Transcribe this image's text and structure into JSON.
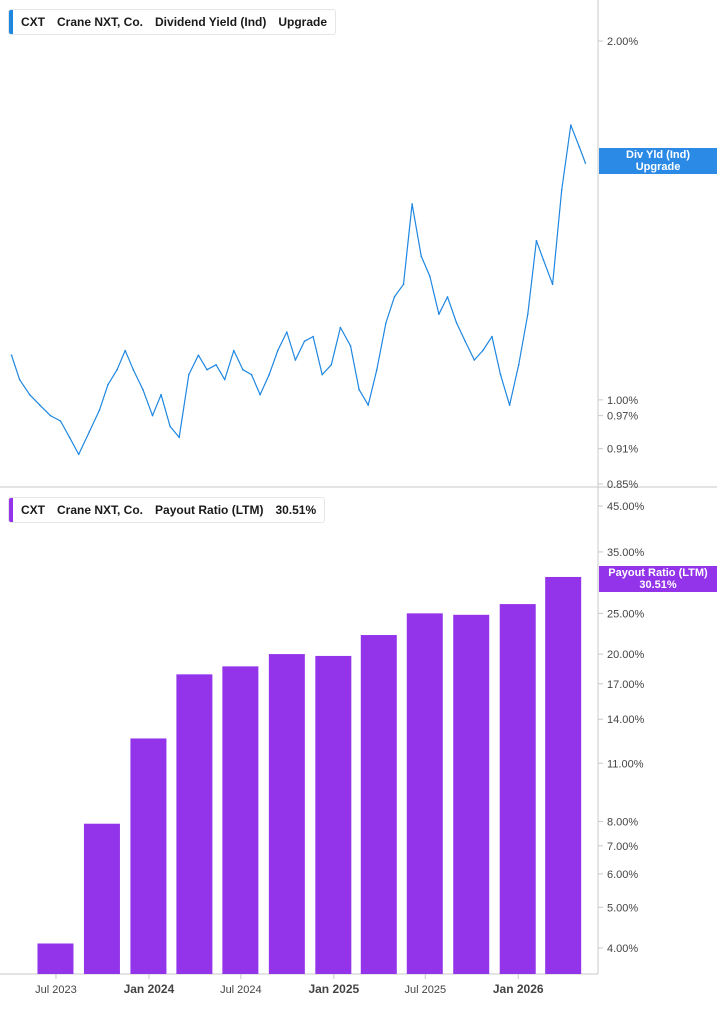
{
  "colors": {
    "yield_line": "#1f87e0",
    "payout_bar": "#9333ea",
    "axis": "#c8c8c8",
    "tick_text": "#444444"
  },
  "top_panel": {
    "legend": {
      "ticker": "CXT",
      "company": "Crane NXT, Co.",
      "metric": "Dividend Yield (Ind)",
      "value": "Upgrade"
    },
    "badge": {
      "line1": "Div Yld (Ind)",
      "line2": "Upgrade"
    }
  },
  "bottom_panel": {
    "legend": {
      "ticker": "CXT",
      "company": "Crane NXT, Co.",
      "metric": "Payout Ratio (LTM)",
      "value": "30.51%"
    },
    "badge": {
      "line1": "Payout Ratio (LTM)",
      "line2": "30.51%"
    }
  },
  "chart_data": [
    {
      "type": "line",
      "name": "Dividend Yield (Ind)",
      "y_scale": "log",
      "ylim": [
        0.85,
        2.15
      ],
      "y_ticks": [
        "2.00%",
        "1.00%",
        "0.97%",
        "0.91%",
        "0.85%"
      ],
      "y_tick_values": [
        2.0,
        1.0,
        0.97,
        0.91,
        0.85
      ],
      "x": [
        "2023-04-04",
        "2023-04-20",
        "2023-05-10",
        "2023-05-30",
        "2023-06-20",
        "2023-07-10",
        "2023-07-28",
        "2023-08-15",
        "2023-09-05",
        "2023-09-25",
        "2023-10-12",
        "2023-10-30",
        "2023-11-15",
        "2023-12-01",
        "2023-12-20",
        "2024-01-08",
        "2024-01-25",
        "2024-02-12",
        "2024-03-01",
        "2024-03-20",
        "2024-04-08",
        "2024-04-25",
        "2024-05-13",
        "2024-05-30",
        "2024-06-17",
        "2024-07-05",
        "2024-07-22",
        "2024-08-08",
        "2024-08-26",
        "2024-09-12",
        "2024-09-30",
        "2024-10-17",
        "2024-11-04",
        "2024-11-21",
        "2024-12-09",
        "2024-12-27",
        "2025-01-14",
        "2025-02-03",
        "2025-02-20",
        "2025-03-10",
        "2025-03-27",
        "2025-04-14",
        "2025-05-01",
        "2025-05-19",
        "2025-06-05",
        "2025-06-23",
        "2025-07-10",
        "2025-07-28",
        "2025-08-14",
        "2025-09-01",
        "2025-09-18",
        "2025-10-06",
        "2025-10-23",
        "2025-11-10",
        "2025-11-27",
        "2025-12-15",
        "2026-01-02",
        "2026-01-20",
        "2026-02-06",
        "2026-02-20",
        "2026-03-10",
        "2026-03-28",
        "2026-04-15",
        "2026-05-02",
        "2026-05-14"
      ],
      "values": [
        1.09,
        1.04,
        1.01,
        0.99,
        0.97,
        0.96,
        0.93,
        0.9,
        0.94,
        0.98,
        1.03,
        1.06,
        1.1,
        1.06,
        1.02,
        0.97,
        1.01,
        0.95,
        0.93,
        1.05,
        1.09,
        1.06,
        1.07,
        1.04,
        1.1,
        1.06,
        1.05,
        1.01,
        1.05,
        1.1,
        1.14,
        1.08,
        1.12,
        1.13,
        1.05,
        1.07,
        1.15,
        1.11,
        1.02,
        0.99,
        1.06,
        1.16,
        1.22,
        1.25,
        1.46,
        1.32,
        1.27,
        1.18,
        1.22,
        1.16,
        1.12,
        1.08,
        1.1,
        1.13,
        1.05,
        0.99,
        1.07,
        1.18,
        1.36,
        1.31,
        1.25,
        1.5,
        1.7,
        1.63,
        1.58
      ],
      "xlabel": "",
      "ylabel": ""
    },
    {
      "type": "bar",
      "name": "Payout Ratio (LTM)",
      "y_scale": "log",
      "ylim": [
        3.5,
        52
      ],
      "y_ticks": [
        "45.00%",
        "35.00%",
        "25.00%",
        "20.00%",
        "17.00%",
        "14.00%",
        "11.00%",
        "8.00%",
        "7.00%",
        "6.00%",
        "5.00%",
        "4.00%"
      ],
      "y_tick_values": [
        45,
        35,
        25,
        20,
        17,
        14,
        11,
        8,
        7,
        6,
        5,
        4
      ],
      "x": [
        "2023-06-30",
        "2023-09-30",
        "2023-12-31",
        "2024-03-31",
        "2024-06-30",
        "2024-09-30",
        "2024-12-31",
        "2025-03-31",
        "2025-06-30",
        "2025-09-30",
        "2025-12-31",
        "2026-03-31"
      ],
      "values": [
        4.1,
        7.9,
        12.6,
        17.9,
        18.7,
        20.0,
        19.8,
        22.2,
        25.0,
        24.8,
        26.3,
        30.51
      ],
      "x_ticks": [
        "Jul 2023",
        "Jan 2024",
        "Jul 2024",
        "Jan 2025",
        "Jul 2025",
        "Jan 2026"
      ],
      "x_tick_values": [
        "2023-07-01",
        "2024-01-01",
        "2024-07-01",
        "2025-01-01",
        "2025-07-01",
        "2026-01-01"
      ],
      "x_tick_bold": [
        false,
        true,
        false,
        true,
        false,
        true
      ],
      "xlabel": "",
      "ylabel": ""
    }
  ]
}
